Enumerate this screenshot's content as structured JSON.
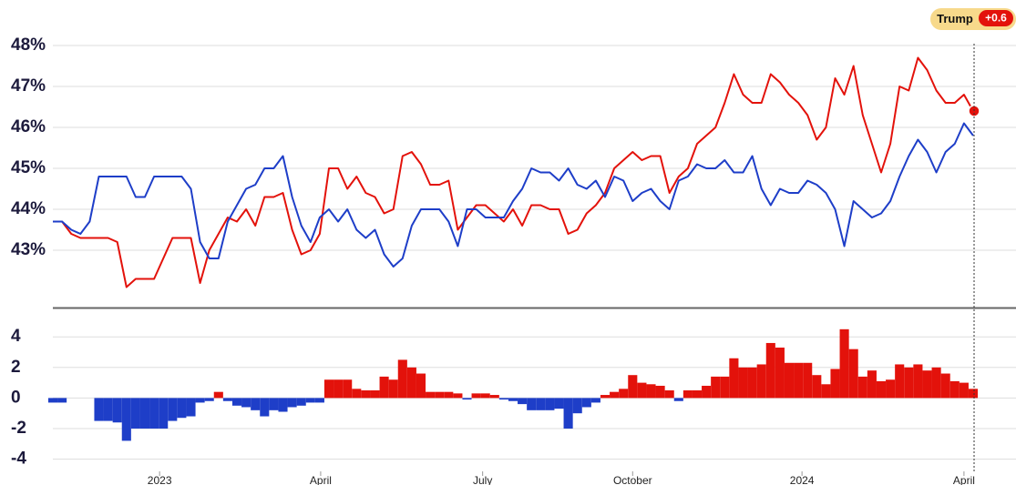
{
  "chart_data": [
    {
      "type": "line",
      "badge": {
        "label": "Trump",
        "value": 0.6,
        "value_label": "+0.6"
      },
      "xlim": [
        0,
        100
      ],
      "xticks": [
        {
          "value": 11.6,
          "label": "2023"
        },
        {
          "value": 29.1,
          "label": "April"
        },
        {
          "value": 46.7,
          "label": "July"
        },
        {
          "value": 63,
          "label": "October"
        },
        {
          "value": 81.4,
          "label": "2024"
        },
        {
          "value": 99,
          "label": "April"
        }
      ],
      "ylim": [
        41.6,
        48.2
      ],
      "yticks": [
        {
          "value": 48,
          "label": "48%"
        },
        {
          "value": 47,
          "label": "47%"
        },
        {
          "value": 46,
          "label": "46%"
        },
        {
          "value": 45,
          "label": "45%"
        },
        {
          "value": 44,
          "label": "44%"
        },
        {
          "value": 43,
          "label": "43%"
        }
      ],
      "grid": true,
      "series": [
        {
          "color": "#e3120b",
          "values": [
            43.7,
            43.7,
            43.4,
            43.3,
            43.3,
            43.3,
            43.3,
            43.2,
            42.1,
            42.3,
            42.3,
            42.3,
            42.8,
            43.3,
            43.3,
            43.3,
            42.2,
            43.0,
            43.4,
            43.8,
            43.7,
            44.0,
            43.6,
            44.3,
            44.3,
            44.4,
            43.5,
            42.9,
            43.0,
            43.4,
            45.0,
            45.0,
            44.5,
            44.8,
            44.4,
            44.3,
            43.9,
            44.0,
            45.3,
            45.4,
            45.1,
            44.6,
            44.6,
            44.7,
            43.5,
            43.8,
            44.1,
            44.1,
            43.9,
            43.7,
            44.0,
            43.6,
            44.1,
            44.1,
            44.0,
            44.0,
            43.4,
            43.5,
            43.9,
            44.1,
            44.4,
            45.0,
            45.2,
            45.4,
            45.2,
            45.3,
            45.3,
            44.4,
            44.8,
            45.0,
            45.6,
            45.8,
            46.0,
            46.6,
            47.3,
            46.8,
            46.6,
            46.6,
            47.3,
            47.1,
            46.8,
            46.6,
            46.3,
            45.7,
            46.0,
            47.2,
            46.8,
            47.5,
            46.3,
            45.6,
            44.9,
            45.6,
            47.0,
            46.9,
            47.7,
            47.4,
            46.9,
            46.6,
            46.6,
            46.8,
            46.4
          ]
        },
        {
          "color": "#1e3ec8",
          "values": [
            43.7,
            43.7,
            43.5,
            43.4,
            43.7,
            44.8,
            44.8,
            44.8,
            44.8,
            44.3,
            44.3,
            44.8,
            44.8,
            44.8,
            44.8,
            44.5,
            43.2,
            42.8,
            42.8,
            43.7,
            44.1,
            44.5,
            44.6,
            45.0,
            45.0,
            45.3,
            44.3,
            43.6,
            43.2,
            43.8,
            44.0,
            43.7,
            44.0,
            43.5,
            43.3,
            43.5,
            42.9,
            42.6,
            42.8,
            43.6,
            44.0,
            44.0,
            44.0,
            43.7,
            43.1,
            44.0,
            44.0,
            43.8,
            43.8,
            43.8,
            44.2,
            44.5,
            45.0,
            44.9,
            44.9,
            44.7,
            45.0,
            44.6,
            44.5,
            44.7,
            44.3,
            44.8,
            44.7,
            44.2,
            44.4,
            44.5,
            44.2,
            44.0,
            44.7,
            44.8,
            45.1,
            45.0,
            45.0,
            45.2,
            44.9,
            44.9,
            45.3,
            44.5,
            44.1,
            44.5,
            44.4,
            44.4,
            44.7,
            44.6,
            44.4,
            44.0,
            43.1,
            44.2,
            44.0,
            43.8,
            43.9,
            44.2,
            44.8,
            45.3,
            45.7,
            45.4,
            44.9,
            45.4,
            45.6,
            46.1,
            45.8
          ]
        }
      ]
    },
    {
      "type": "bar",
      "xlim": [
        0,
        100
      ],
      "ylim": [
        -4.8,
        5.8
      ],
      "yticks": [
        4,
        2,
        0,
        -2,
        -4
      ],
      "grid": true,
      "positive_color": "#e3120b",
      "negative_color": "#1e3ec8",
      "values": [
        -0.3,
        -0.3,
        0,
        0,
        0,
        -1.5,
        -1.5,
        -1.6,
        -2.8,
        -2.0,
        -2.0,
        -2.0,
        -2.0,
        -1.5,
        -1.3,
        -1.2,
        -0.3,
        -0.2,
        0.4,
        -0.2,
        -0.5,
        -0.6,
        -0.8,
        -1.2,
        -0.8,
        -0.9,
        -0.6,
        -0.5,
        -0.3,
        -0.3,
        1.2,
        1.2,
        1.2,
        0.6,
        0.5,
        0.5,
        1.4,
        1.2,
        2.5,
        2.0,
        1.6,
        0.4,
        0.4,
        0.4,
        0.3,
        -0.1,
        0.3,
        0.3,
        0.2,
        -0.1,
        -0.2,
        -0.4,
        -0.8,
        -0.8,
        -0.8,
        -0.7,
        -2.0,
        -1.0,
        -0.6,
        -0.3,
        0.2,
        0.4,
        0.6,
        1.5,
        1.0,
        0.9,
        0.8,
        0.5,
        -0.2,
        0.5,
        0.5,
        0.8,
        1.4,
        1.4,
        2.6,
        2.0,
        2.0,
        2.2,
        3.6,
        3.3,
        2.3,
        2.3,
        2.3,
        1.5,
        0.9,
        1.9,
        4.5,
        3.2,
        1.4,
        1.8,
        1.1,
        1.2,
        2.2,
        2.0,
        2.2,
        1.8,
        2.0,
        1.6,
        1.1,
        1.0,
        0.6
      ]
    }
  ]
}
